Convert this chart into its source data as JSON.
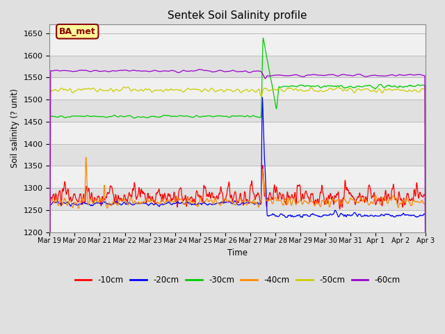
{
  "title": "Sentek Soil Salinity profile",
  "xlabel": "Time",
  "ylabel": "Soil salinity (? unit)",
  "ylim": [
    1200,
    1670
  ],
  "yticks": [
    1200,
    1250,
    1300,
    1350,
    1400,
    1450,
    1500,
    1550,
    1600,
    1650
  ],
  "annotation_text": "BA_met",
  "annotation_color": "#8B0000",
  "annotation_bg": "#FFFF99",
  "colors": {
    "-10cm": "#FF0000",
    "-20cm": "#0000FF",
    "-30cm": "#00CC00",
    "-40cm": "#FF8800",
    "-50cm": "#CCCC00",
    "-60cm": "#9900CC"
  },
  "x_labels": [
    "Mar 19",
    "Mar 20",
    "Mar 21",
    "Mar 22",
    "Mar 23",
    "Mar 24",
    "Mar 25",
    "Mar 26",
    "Mar 27",
    "Mar 28",
    "Mar 29",
    "Mar 30",
    "Mar 31",
    "Apr 1",
    "Apr 2",
    "Apr 3"
  ],
  "grid_color": "#BBBBBB",
  "bg_color": "#E0E0E0",
  "plot_bg_light": "#F0F0F0",
  "plot_bg_dark": "#E0E0E0"
}
